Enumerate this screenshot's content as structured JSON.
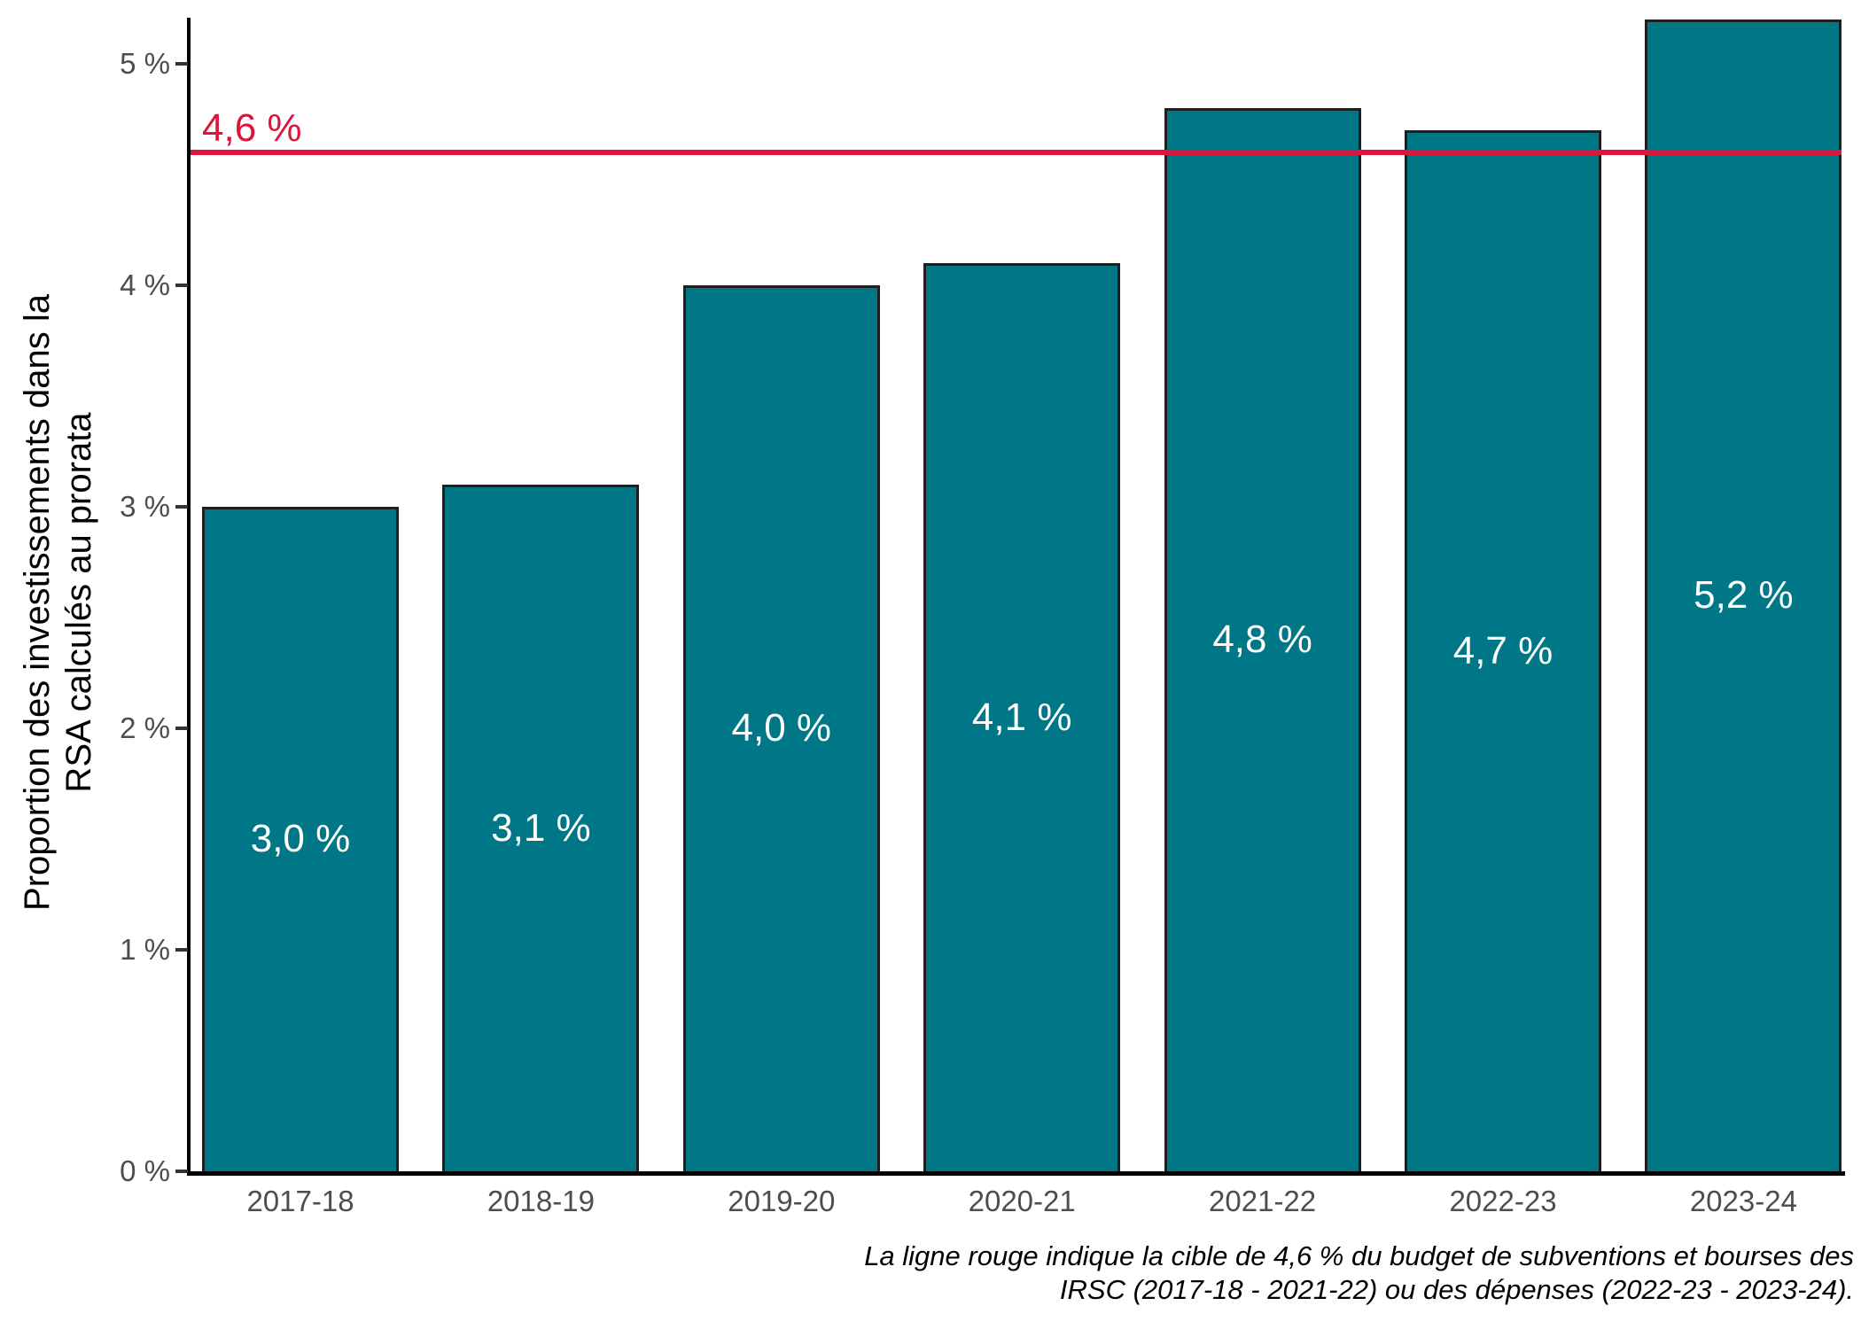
{
  "chart_data": {
    "type": "bar",
    "title": "",
    "xlabel": "",
    "ylabel": "Proportion des investissements dans la RSA calculés au prorata",
    "ylabel_lines": [
      "Proportion des investissements dans la",
      "RSA calculés au prorata"
    ],
    "categories": [
      "2017-18",
      "2018-19",
      "2019-20",
      "2020-21",
      "2021-22",
      "2022-23",
      "2023-24"
    ],
    "values": [
      3.0,
      3.1,
      4.0,
      4.1,
      4.8,
      4.7,
      5.2
    ],
    "bar_labels": [
      "3,0 %",
      "3,1 %",
      "4,0 %",
      "4,1 %",
      "4,8 %",
      "4,7 %",
      "5,2 %"
    ],
    "y_ticks": [
      {
        "value": 0,
        "label": "0 %"
      },
      {
        "value": 1,
        "label": "1 %"
      },
      {
        "value": 2,
        "label": "2 %"
      },
      {
        "value": 3,
        "label": "3 %"
      },
      {
        "value": 4,
        "label": "4 %"
      },
      {
        "value": 5,
        "label": "5 %"
      }
    ],
    "ylim": [
      0,
      5.2
    ],
    "grid": false,
    "legend": "none",
    "target_line": {
      "value": 4.6,
      "label": "4,6 %"
    },
    "caption_lines": [
      "La ligne rouge indique la cible de 4,6 % du budget de subventions et bourses des",
      "IRSC (2017-18 - 2021-22) ou des dépenses (2022-23 - 2023-24)."
    ],
    "colors": {
      "bar_fill": "#007787",
      "bar_border": "#1F1F1F",
      "bar_label_text": "#FFFFFF",
      "target_red": "#DF143C",
      "tick_text": "#4D4D4D",
      "axis": "#000000",
      "caption_text": "#000000"
    }
  }
}
